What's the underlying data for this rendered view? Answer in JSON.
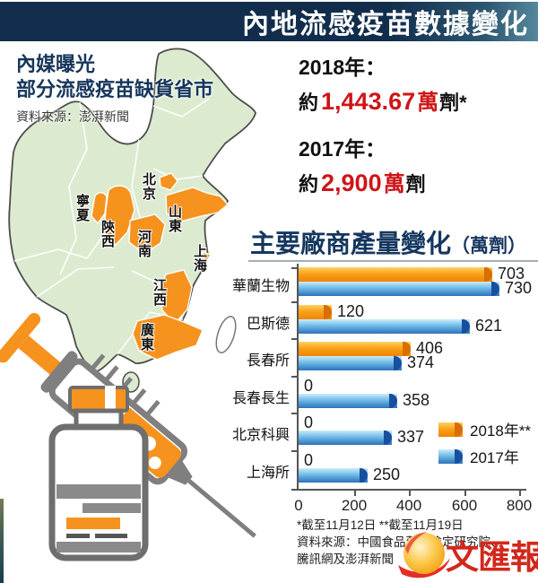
{
  "header": {
    "title": "內地流感疫苗數據變化"
  },
  "map_section": {
    "title_line1": "內媒曝光",
    "title_line2": "部分流感疫苗缺貨省市",
    "source": "資料來源：澎湃新聞",
    "provinces": [
      "北京",
      "寧夏",
      "陝西",
      "山東",
      "河南",
      "上海",
      "江西",
      "廣東"
    ]
  },
  "stats": {
    "y2018_label": "2018年：",
    "y2018_prefix": "約",
    "y2018_value": "1,443.67",
    "y2018_unit_red": "萬",
    "y2018_suffix": "劑*",
    "y2017_label": "2017年：",
    "y2017_prefix": "約",
    "y2017_value": "2,900",
    "y2017_unit_red": "萬",
    "y2017_suffix": "劑"
  },
  "chart_data": {
    "type": "bar",
    "orientation": "horizontal",
    "title": "主要廠商產量變化",
    "title_unit": "（萬劑）",
    "categories": [
      "華蘭生物",
      "巴斯德",
      "長春所",
      "長春長生",
      "北京科興",
      "上海所"
    ],
    "series": [
      {
        "name": "2018年**",
        "color": "#f6921e",
        "values": [
          703,
          120,
          406,
          0,
          0,
          0
        ]
      },
      {
        "name": "2017年",
        "color": "#2e72ba",
        "values": [
          730,
          621,
          374,
          358,
          337,
          250
        ]
      }
    ],
    "x_ticks": [
      0,
      200,
      400,
      600,
      800
    ],
    "xlim": [
      0,
      800
    ],
    "grid": false,
    "legend_position": "middle-right",
    "footnotes": [
      "*截至11月12日  **截至11月19日",
      "資料來源：中國食品藥品檢定研究院、",
      "騰訊網及澎湃新聞"
    ]
  },
  "logo": {
    "name": "文匯報"
  },
  "colors": {
    "header_navy": "#112d4b",
    "accent_orange": "#f6921e",
    "bar_blue_dark": "#17509e",
    "red_number": "#cf1418",
    "map_green": "#dcebcf",
    "navy_text": "#16365c"
  }
}
